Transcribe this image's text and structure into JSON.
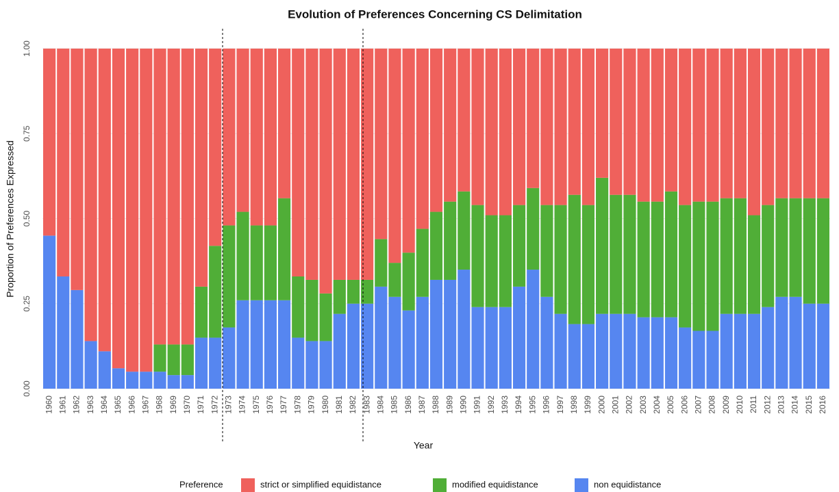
{
  "chart_data": {
    "type": "stacked_bar",
    "title": "Evolution of Preferences Concerning CS Delimitation",
    "x_label": "Year",
    "y_label": "Proportion of Preferences Expressed",
    "legend_title": "Preference",
    "legend_position": "bottom",
    "grid": true,
    "categories": [
      "1960",
      "1961",
      "1962",
      "1963",
      "1964",
      "1965",
      "1966",
      "1967",
      "1968",
      "1969",
      "1970",
      "1971",
      "1972",
      "1973",
      "1974",
      "1975",
      "1976",
      "1977",
      "1978",
      "1979",
      "1980",
      "1981",
      "1982",
      "1983",
      "1984",
      "1985",
      "1986",
      "1987",
      "1988",
      "1989",
      "1990",
      "1991",
      "1992",
      "1993",
      "1994",
      "1995",
      "1996",
      "1997",
      "1998",
      "1999",
      "2000",
      "2001",
      "2002",
      "2003",
      "2004",
      "2005",
      "2006",
      "2007",
      "2008",
      "2009",
      "2010",
      "2011",
      "2012",
      "2013",
      "2014",
      "2015",
      "2016"
    ],
    "series": [
      {
        "name": "strict or simplified equidistance",
        "color": "#ef615c",
        "values": [
          0.55,
          0.67,
          0.71,
          0.86,
          0.89,
          0.94,
          0.95,
          0.95,
          0.87,
          0.87,
          0.87,
          0.7,
          0.58,
          0.52,
          0.48,
          0.52,
          0.52,
          0.44,
          0.67,
          0.68,
          0.72,
          0.68,
          0.68,
          0.68,
          0.56,
          0.63,
          0.6,
          0.53,
          0.48,
          0.45,
          0.42,
          0.46,
          0.49,
          0.49,
          0.46,
          0.41,
          0.46,
          0.46,
          0.43,
          0.46,
          0.38,
          0.43,
          0.43,
          0.45,
          0.45,
          0.42,
          0.46,
          0.45,
          0.45,
          0.44,
          0.44,
          0.49,
          0.46,
          0.44,
          0.44,
          0.44,
          0.44
        ]
      },
      {
        "name": "modified equidistance",
        "color": "#50ae37",
        "values": [
          0,
          0,
          0,
          0,
          0,
          0,
          0,
          0,
          0.08,
          0.09,
          0.09,
          0.15,
          0.27,
          0.3,
          0.26,
          0.22,
          0.22,
          0.3,
          0.18,
          0.18,
          0.14,
          0.1,
          0.07,
          0.07,
          0.14,
          0.1,
          0.17,
          0.2,
          0.2,
          0.23,
          0.23,
          0.3,
          0.27,
          0.27,
          0.24,
          0.24,
          0.27,
          0.32,
          0.38,
          0.35,
          0.4,
          0.35,
          0.35,
          0.34,
          0.34,
          0.37,
          0.36,
          0.38,
          0.38,
          0.34,
          0.34,
          0.29,
          0.3,
          0.29,
          0.29,
          0.31,
          0.31
        ]
      },
      {
        "name": "non equidistance",
        "color": "#5686f0",
        "values": [
          0.45,
          0.33,
          0.29,
          0.14,
          0.11,
          0.06,
          0.05,
          0.05,
          0.05,
          0.04,
          0.04,
          0.15,
          0.15,
          0.18,
          0.26,
          0.26,
          0.26,
          0.26,
          0.15,
          0.14,
          0.14,
          0.22,
          0.25,
          0.25,
          0.3,
          0.27,
          0.23,
          0.27,
          0.32,
          0.32,
          0.35,
          0.24,
          0.24,
          0.24,
          0.3,
          0.35,
          0.27,
          0.22,
          0.19,
          0.19,
          0.22,
          0.22,
          0.22,
          0.21,
          0.21,
          0.21,
          0.18,
          0.17,
          0.17,
          0.22,
          0.22,
          0.22,
          0.24,
          0.27,
          0.27,
          0.25,
          0.25
        ]
      }
    ],
    "ylim": [
      0,
      1
    ],
    "yticks": [
      {
        "value": 0,
        "label": "0.00"
      },
      {
        "value": 0.25,
        "label": "0.25"
      },
      {
        "value": 0.5,
        "label": "0.50"
      },
      {
        "value": 0.75,
        "label": "0.75"
      },
      {
        "value": 1,
        "label": "1.00"
      }
    ]
  }
}
